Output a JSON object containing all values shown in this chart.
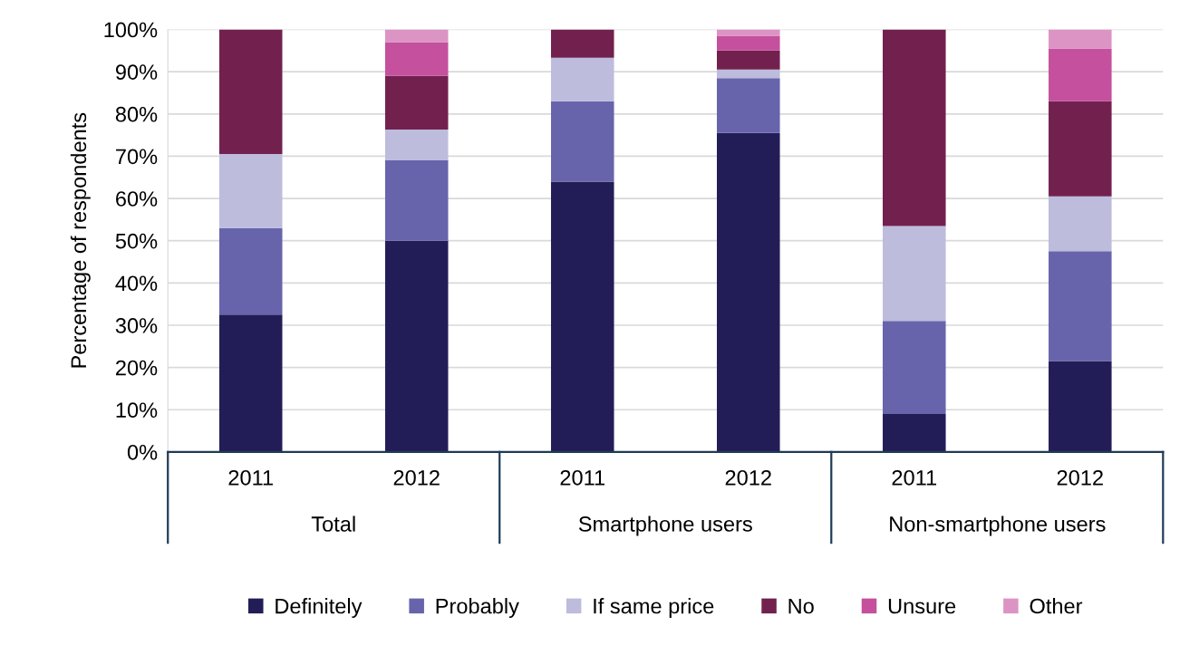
{
  "chart_data": {
    "type": "bar",
    "stacked": true,
    "ylabel": "Percentage of respondents",
    "categories": [
      "2011",
      "2012",
      "2011",
      "2012",
      "2011",
      "2012"
    ],
    "series": [
      {
        "name": "Definitely",
        "color": "#231d57",
        "values": [
          32.5,
          50,
          64,
          75.5,
          9,
          21.5
        ]
      },
      {
        "name": "Probably",
        "color": "#6764ac",
        "values": [
          20.5,
          19,
          19,
          13,
          22,
          26
        ]
      },
      {
        "name": "If same price",
        "color": "#bdbcdc",
        "values": [
          17.5,
          7.3,
          10.3,
          2,
          22.5,
          13
        ]
      },
      {
        "name": "No",
        "color": "#72214f",
        "values": [
          29.5,
          12.7,
          6.7,
          4.5,
          46.5,
          22.5
        ]
      },
      {
        "name": "Unsure",
        "color": "#c4509e",
        "values": [
          0,
          8,
          0,
          3.5,
          0,
          12.5
        ]
      },
      {
        "name": "Other",
        "color": "#dc94c4",
        "values": [
          0,
          3,
          0,
          1.5,
          0,
          4.5
        ]
      }
    ],
    "annotations": [
      "Total",
      "Smartphone users",
      "Non-smartphone users"
    ],
    "ylim": [
      0,
      100
    ],
    "yticks": [
      {
        "value": 0,
        "label": "0%"
      },
      {
        "value": 10,
        "label": "10%"
      },
      {
        "value": 20,
        "label": "20%"
      },
      {
        "value": 30,
        "label": "30%"
      },
      {
        "value": 40,
        "label": "40%"
      },
      {
        "value": 50,
        "label": "50%"
      },
      {
        "value": 60,
        "label": "60%"
      },
      {
        "value": 70,
        "label": "70%"
      },
      {
        "value": 80,
        "label": "80%"
      },
      {
        "value": 90,
        "label": "90%"
      },
      {
        "value": 100,
        "label": "100%"
      }
    ],
    "grid": "y",
    "legend": "bottom"
  }
}
